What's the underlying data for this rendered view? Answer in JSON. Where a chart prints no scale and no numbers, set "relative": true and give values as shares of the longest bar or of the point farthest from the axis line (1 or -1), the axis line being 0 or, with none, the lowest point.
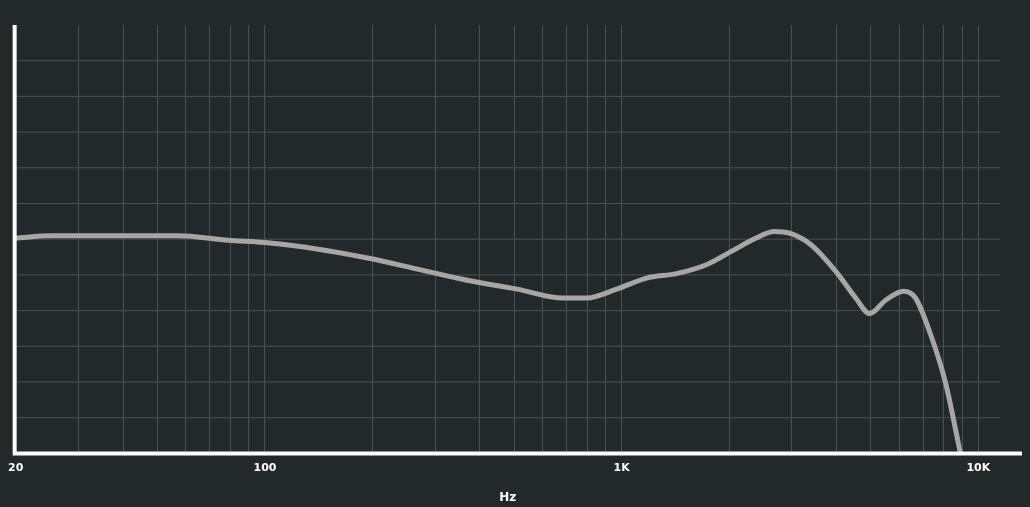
{
  "chart_data": {
    "type": "line",
    "xlabel": "Hz",
    "relative": true,
    "log": "x",
    "grid": true,
    "marker": "none",
    "line_style": "solid",
    "xlim": [
      20,
      11500
    ],
    "xticks": [
      20,
      {
        "value": 30,
        "label": null
      },
      {
        "value": 40,
        "label": null
      },
      {
        "value": 50,
        "label": null
      },
      {
        "value": 60,
        "label": null
      },
      {
        "value": 70,
        "label": null
      },
      {
        "value": 80,
        "label": null
      },
      {
        "value": 90,
        "label": null
      },
      100,
      {
        "value": 200,
        "label": null
      },
      {
        "value": 300,
        "label": null
      },
      {
        "value": 400,
        "label": null
      },
      {
        "value": 500,
        "label": null
      },
      {
        "value": 600,
        "label": null
      },
      {
        "value": 700,
        "label": null
      },
      {
        "value": 800,
        "label": null
      },
      {
        "value": 900,
        "label": null
      },
      {
        "value": 1000,
        "label": "1K"
      },
      {
        "value": 2000,
        "label": null
      },
      {
        "value": 3000,
        "label": null
      },
      {
        "value": 4000,
        "label": null
      },
      {
        "value": 5000,
        "label": null
      },
      {
        "value": 6000,
        "label": null
      },
      {
        "value": 7000,
        "label": null
      },
      {
        "value": 8000,
        "label": null
      },
      {
        "value": 9000,
        "label": null
      },
      {
        "value": 10000,
        "label": "10K"
      }
    ],
    "series": [
      {
        "color": "#a6a7a5",
        "x": [
          20,
          25,
          39,
          57,
          79,
          100,
          141,
          194,
          268,
          369,
          509,
          684,
          799,
          968,
          1174,
          1424,
          1728,
          2029,
          2383,
          2677,
          2985,
          3395,
          3984,
          4532,
          4958,
          5496,
          6172,
          6665,
          7331,
          8085,
          8909
        ],
        "values": [
          0.97,
          0.98,
          0.98,
          0.98,
          0.96,
          0.95,
          0.92,
          0.88,
          0.83,
          0.78,
          0.74,
          0.7,
          0.7,
          0.74,
          0.79,
          0.81,
          0.85,
          0.91,
          0.97,
          1,
          0.99,
          0.94,
          0.82,
          0.7,
          0.63,
          0.69,
          0.73,
          0.7,
          0.54,
          0.32,
          0
        ]
      }
    ]
  }
}
